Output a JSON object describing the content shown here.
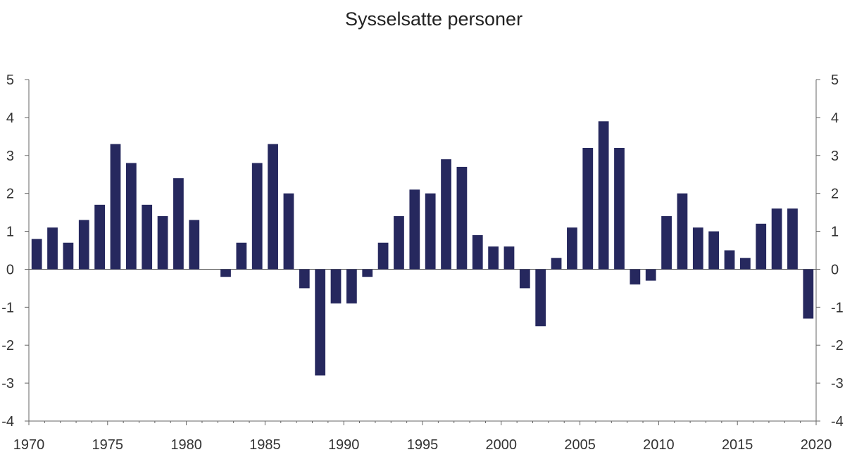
{
  "chart_data": {
    "type": "bar",
    "title": "Sysselsatte personer",
    "xlabel": "",
    "ylabel": "",
    "ylim": [
      -4,
      5
    ],
    "yticks": [
      -4,
      -3,
      -2,
      -1,
      0,
      1,
      2,
      3,
      4,
      5
    ],
    "xlim": [
      1970,
      2020
    ],
    "xticks": [
      1970,
      1975,
      1980,
      1985,
      1990,
      1995,
      2000,
      2005,
      2010,
      2015,
      2020
    ],
    "y_axis_sides": "left-and-right",
    "grid": false,
    "bar_color": "#26285e",
    "series": [
      {
        "x": [
          1971,
          1972,
          1973,
          1974,
          1975,
          1976,
          1977,
          1978,
          1979,
          1980,
          1981,
          1982,
          1983,
          1984,
          1985,
          1986,
          1987,
          1988,
          1989,
          1990,
          1991,
          1992,
          1993,
          1994,
          1995,
          1996,
          1997,
          1998,
          1999,
          2000,
          2001,
          2002,
          2003,
          2004,
          2005,
          2006,
          2007,
          2008,
          2009,
          2010,
          2011,
          2012,
          2013,
          2014,
          2015,
          2016,
          2017,
          2018,
          2019,
          2020
        ],
        "values": [
          0.8,
          1.1,
          0.7,
          1.3,
          1.7,
          3.3,
          2.8,
          1.7,
          1.4,
          2.4,
          1.3,
          0.0,
          -0.2,
          0.7,
          2.8,
          3.3,
          2.0,
          -0.5,
          -2.8,
          -0.9,
          -0.9,
          -0.2,
          0.7,
          1.4,
          2.1,
          2.0,
          2.9,
          2.7,
          0.9,
          0.6,
          0.6,
          -0.5,
          -1.5,
          0.3,
          1.1,
          3.2,
          3.9,
          3.2,
          -0.4,
          -0.3,
          1.4,
          2.0,
          1.1,
          1.0,
          0.5,
          0.3,
          1.2,
          1.6,
          1.6,
          -1.3
        ]
      }
    ]
  }
}
